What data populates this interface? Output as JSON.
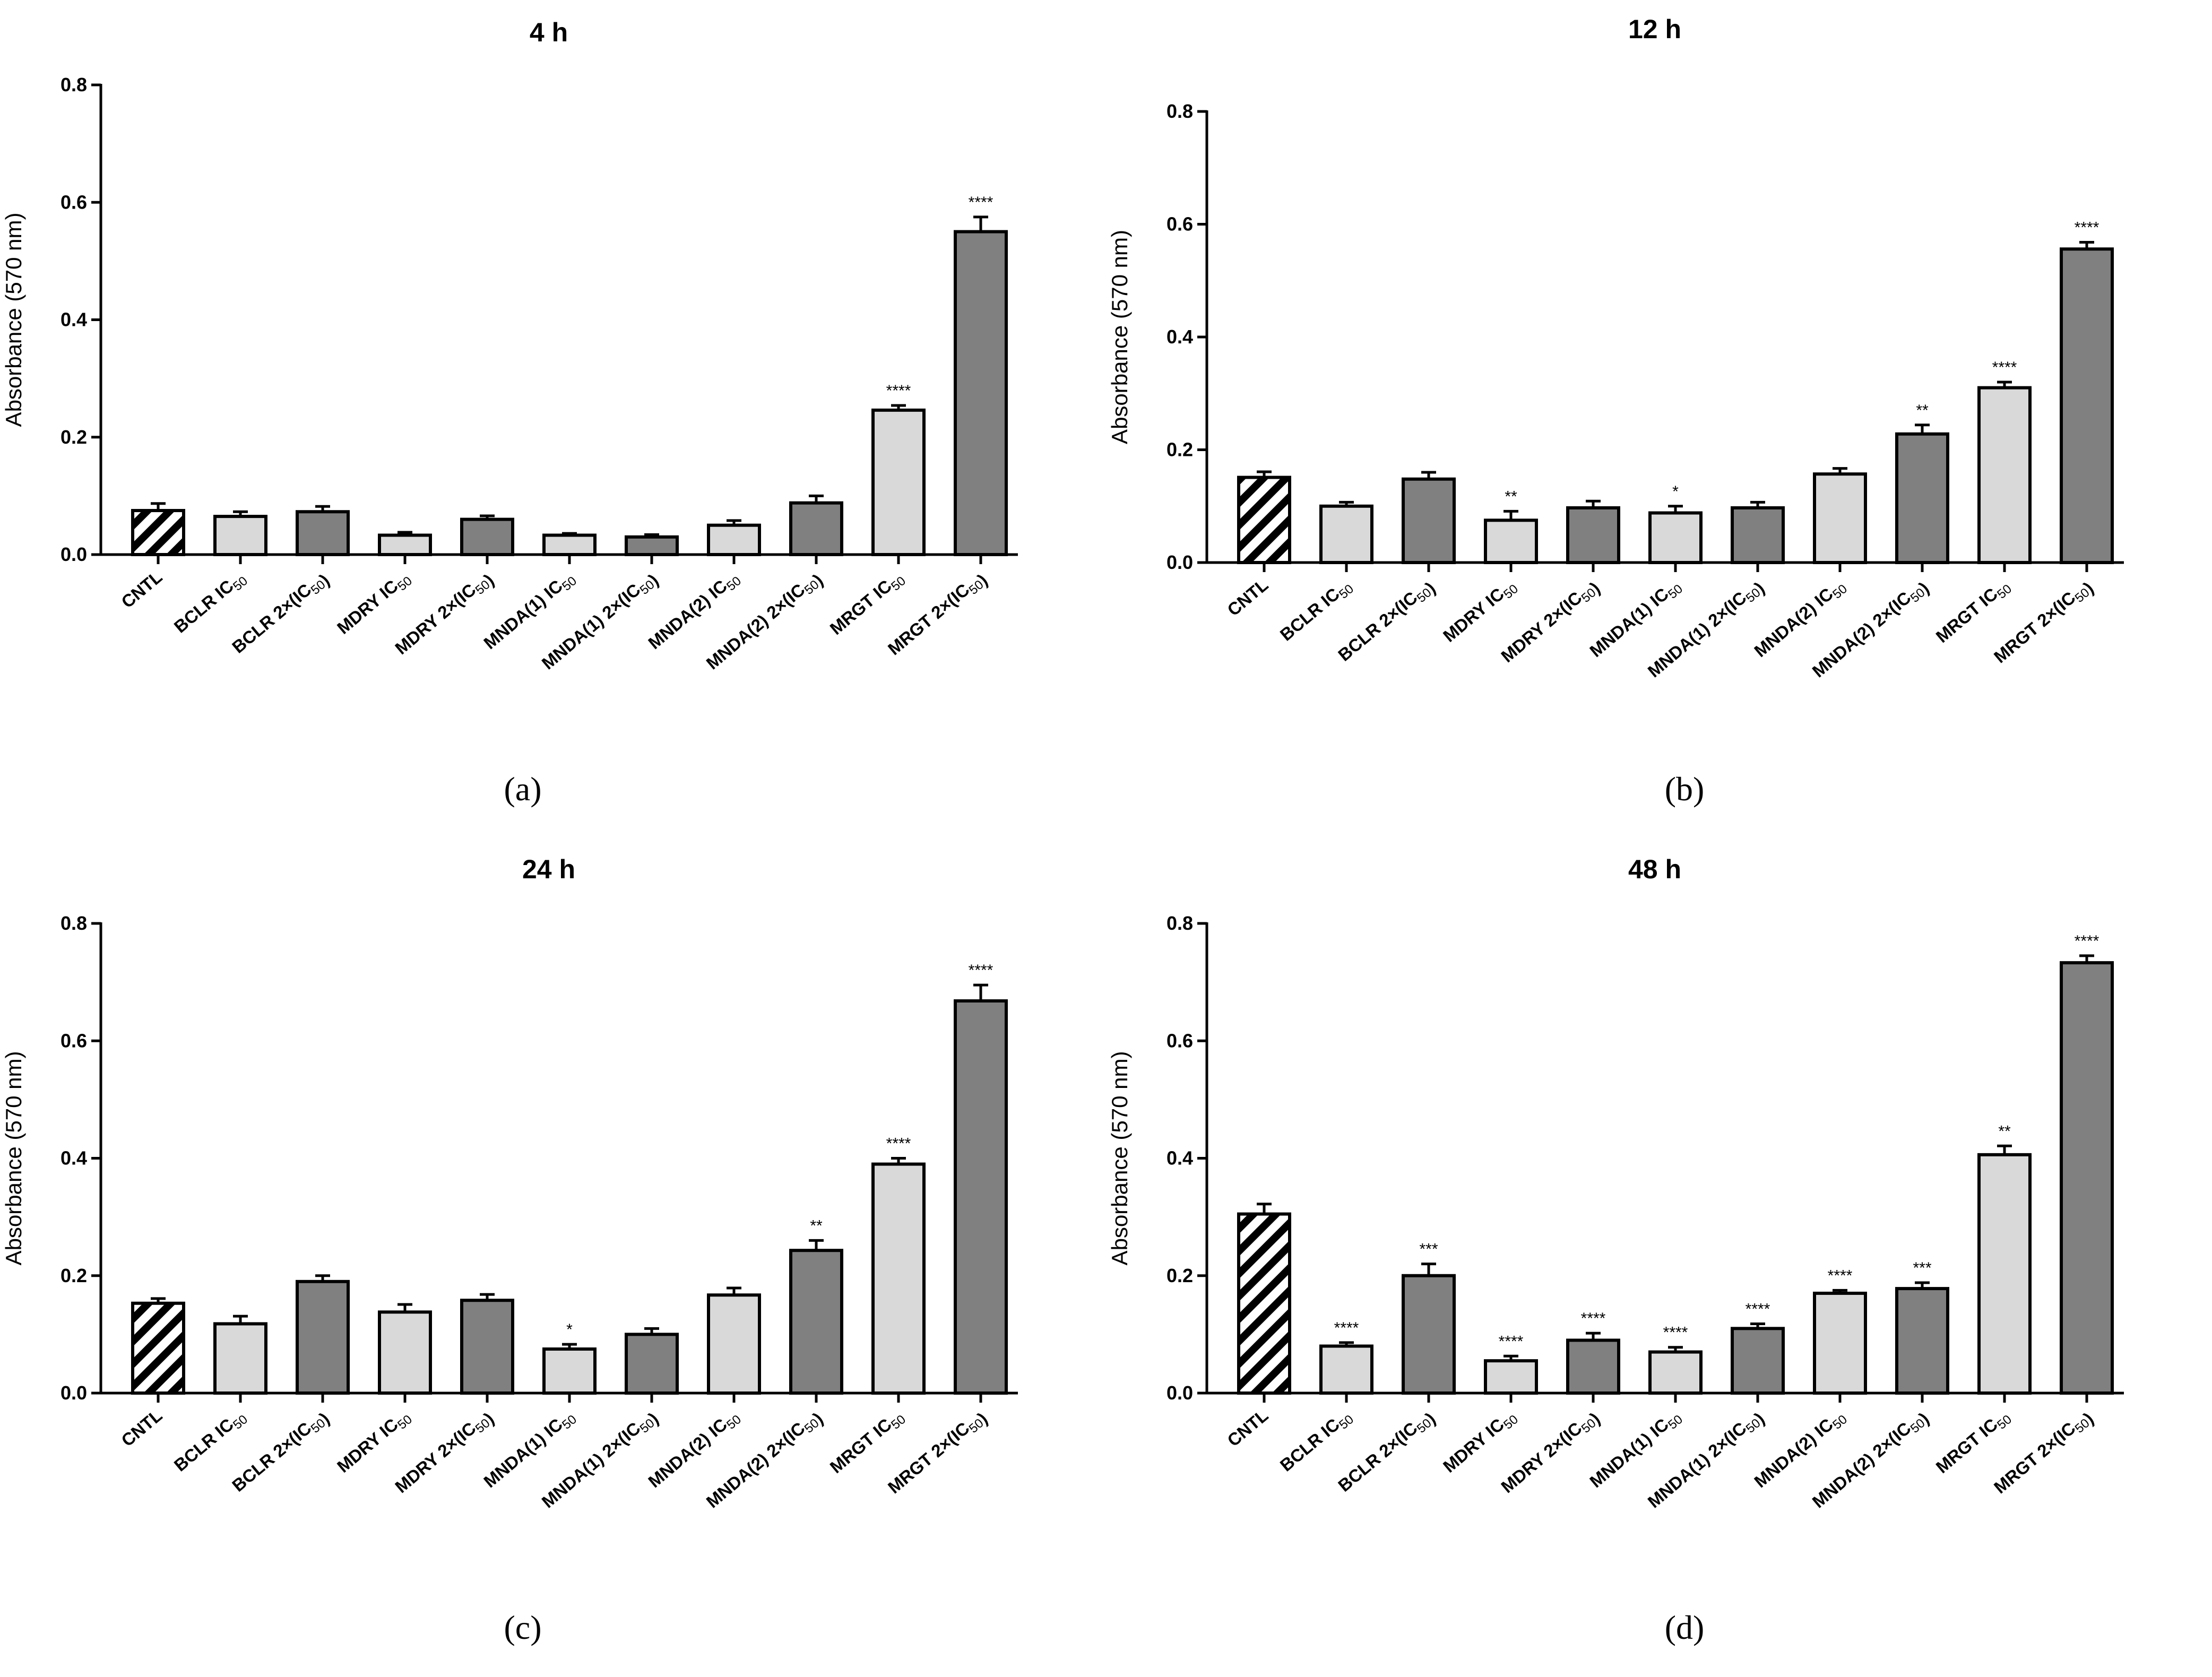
{
  "figure": {
    "colors": {
      "light": "#d9d9d9",
      "dark": "#808080",
      "stroke": "#000000"
    }
  },
  "chart_data": [
    {
      "type": "bar",
      "panel": "(a)",
      "title": "4 h",
      "xlabel": "",
      "ylabel": "Absorbance  (570 nm)",
      "ylim": [
        0,
        0.8
      ],
      "yticks": [
        "0.0",
        "0.2",
        "0.4",
        "0.6",
        "0.8"
      ],
      "categories": [
        "CNTL",
        "BCLR IC50",
        "BCLR 2×(IC50)",
        "MDRY IC50",
        "MDRY 2×(IC50)",
        "MNDA(1) IC50",
        "MNDA(1) 2×(IC50)",
        "MNDA(2) IC50",
        "MNDA(2) 2×(IC50)",
        "MRGT IC50",
        "MRGT 2×(IC50)"
      ],
      "fills": [
        "hatch",
        "light",
        "dark",
        "light",
        "dark",
        "light",
        "dark",
        "light",
        "dark",
        "light",
        "dark"
      ],
      "values": [
        0.075,
        0.065,
        0.073,
        0.033,
        0.06,
        0.033,
        0.03,
        0.05,
        0.088,
        0.246,
        0.55
      ],
      "errors": [
        0.012,
        0.008,
        0.009,
        0.005,
        0.006,
        0.003,
        0.004,
        0.008,
        0.012,
        0.008,
        0.025
      ],
      "significance": [
        "",
        "",
        "",
        "",
        "",
        "",
        "",
        "",
        "",
        "****",
        "****"
      ]
    },
    {
      "type": "bar",
      "panel": "(b)",
      "title": "12 h",
      "xlabel": "",
      "ylabel": "Absorbance  (570 nm)",
      "ylim": [
        0,
        0.8
      ],
      "yticks": [
        "0.0",
        "0.2",
        "0.4",
        "0.6",
        "0.8"
      ],
      "categories": [
        "CNTL",
        "BCLR IC50",
        "BCLR 2×(IC50)",
        "MDRY IC50",
        "MDRY 2×(IC50)",
        "MNDA(1) IC50",
        "MNDA(1) 2×(IC50)",
        "MNDA(2) IC50",
        "MNDA(2) 2×(IC50)",
        "MRGT IC50",
        "MRGT 2×(IC50)"
      ],
      "fills": [
        "hatch",
        "light",
        "dark",
        "light",
        "dark",
        "light",
        "dark",
        "light",
        "dark",
        "light",
        "dark"
      ],
      "values": [
        0.151,
        0.1,
        0.148,
        0.075,
        0.097,
        0.088,
        0.097,
        0.157,
        0.228,
        0.31,
        0.556
      ],
      "errors": [
        0.01,
        0.007,
        0.012,
        0.016,
        0.012,
        0.012,
        0.01,
        0.01,
        0.016,
        0.01,
        0.012
      ],
      "significance": [
        "",
        "",
        "",
        "**",
        "",
        "*",
        "",
        "",
        "**",
        "****",
        "****"
      ]
    },
    {
      "type": "bar",
      "panel": "(c)",
      "title": "24 h",
      "xlabel": "",
      "ylabel": "Absorbance  (570 nm)",
      "ylim": [
        0,
        0.8
      ],
      "yticks": [
        "0.0",
        "0.2",
        "0.4",
        "0.6",
        "0.8"
      ],
      "categories": [
        "CNTL",
        "BCLR IC50",
        "BCLR 2×(IC50)",
        "MDRY IC50",
        "MDRY 2×(IC50)",
        "MNDA(1) IC50",
        "MNDA(1) 2×(IC50)",
        "MNDA(2) IC50",
        "MNDA(2) 2×(IC50)",
        "MRGT IC50",
        "MRGT 2×(IC50)"
      ],
      "fills": [
        "hatch",
        "light",
        "dark",
        "light",
        "dark",
        "light",
        "dark",
        "light",
        "dark",
        "light",
        "dark"
      ],
      "values": [
        0.153,
        0.118,
        0.19,
        0.138,
        0.158,
        0.075,
        0.1,
        0.167,
        0.243,
        0.39,
        0.668
      ],
      "errors": [
        0.008,
        0.013,
        0.01,
        0.013,
        0.01,
        0.008,
        0.01,
        0.012,
        0.017,
        0.01,
        0.027
      ],
      "significance": [
        "",
        "",
        "",
        "",
        "",
        "*",
        "",
        "",
        "**",
        "****",
        "****"
      ]
    },
    {
      "type": "bar",
      "panel": "(d)",
      "title": "48 h",
      "xlabel": "",
      "ylabel": "Absorbance  (570 nm)",
      "ylim": [
        0,
        0.8
      ],
      "yticks": [
        "0.0",
        "0.2",
        "0.4",
        "0.6",
        "0.8"
      ],
      "categories": [
        "CNTL",
        "BCLR IC50",
        "BCLR 2×(IC50)",
        "MDRY IC50",
        "MDRY 2×(IC50)",
        "MNDA(1) IC50",
        "MNDA(1) 2×(IC50)",
        "MNDA(2) IC50",
        "MNDA(2) 2×(IC50)",
        "MRGT IC50",
        "MRGT 2×(IC50)"
      ],
      "fills": [
        "hatch",
        "light",
        "dark",
        "light",
        "dark",
        "light",
        "dark",
        "light",
        "dark",
        "light",
        "dark"
      ],
      "values": [
        0.305,
        0.08,
        0.2,
        0.055,
        0.09,
        0.07,
        0.11,
        0.17,
        0.178,
        0.406,
        0.733
      ],
      "errors": [
        0.017,
        0.006,
        0.02,
        0.008,
        0.012,
        0.008,
        0.008,
        0.005,
        0.01,
        0.015,
        0.012
      ],
      "significance": [
        "",
        "****",
        "***",
        "****",
        "****",
        "****",
        "****",
        "****",
        "***",
        "**",
        "****"
      ]
    }
  ]
}
